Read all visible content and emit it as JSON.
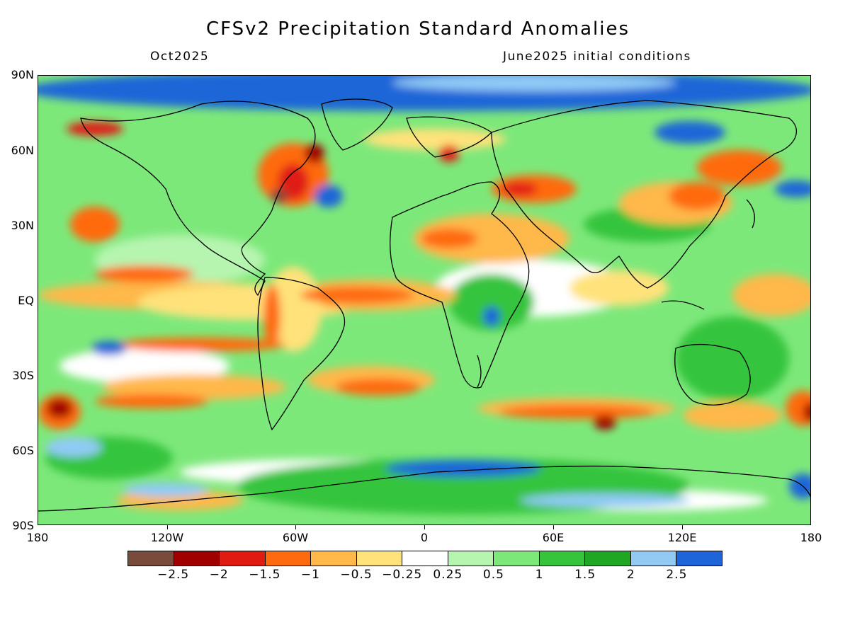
{
  "title": "CFSv2 Precipitation Standard Anomalies",
  "valid_month": "Oct2025",
  "initial_conditions": "June2025 initial conditions",
  "map": {
    "projection": "cylindrical-equidistant",
    "lon_range": [
      -180,
      180
    ],
    "lat_range": [
      -90,
      90
    ],
    "lat_labels": [
      "90N",
      "60N",
      "30N",
      "EQ",
      "30S",
      "60S",
      "90S"
    ],
    "lon_labels": [
      "180",
      "120W",
      "60W",
      "0",
      "60E",
      "120E",
      "180"
    ]
  },
  "colorbar": {
    "colors": [
      "#7a4a3a",
      "#a00000",
      "#e01b12",
      "#ff6a10",
      "#ffb84a",
      "#ffe27a",
      "#ffffff",
      "#b6f5b0",
      "#7de87a",
      "#36c43e",
      "#1fa624",
      "#90caf5",
      "#1e66d8"
    ],
    "labels": [
      "−2.5",
      "−2",
      "−1.5",
      "−1",
      "−0.5",
      "−0.25",
      "0.25",
      "0.5",
      "1",
      "1.5",
      "2",
      "2.5"
    ]
  }
}
